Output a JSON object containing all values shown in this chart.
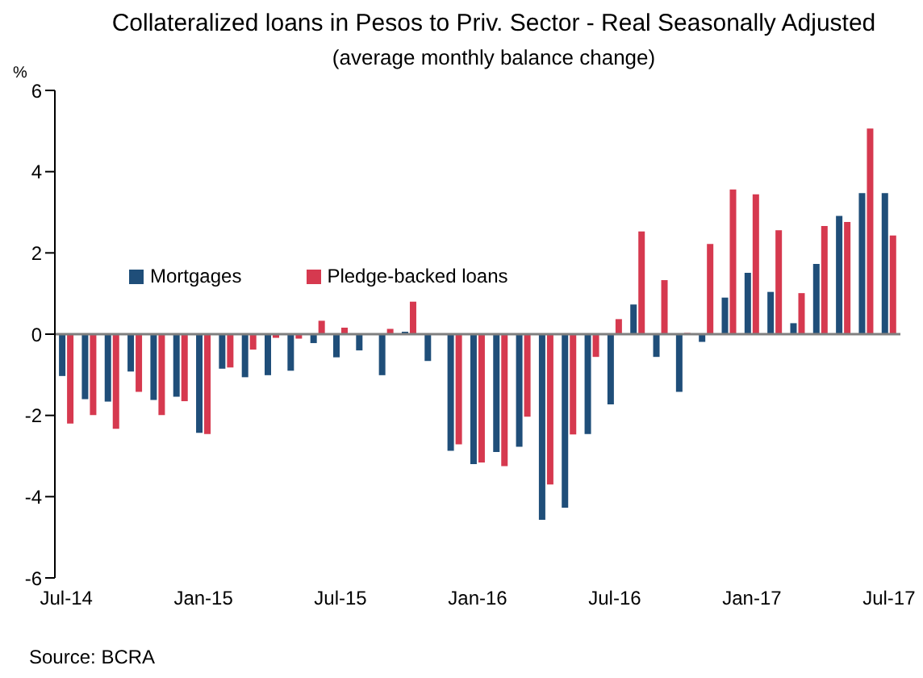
{
  "chart_data": {
    "type": "bar",
    "title": "Collateralized loans in Pesos to Priv. Sector - Real Seasonally Adjusted",
    "subtitle": "(average monthly balance change)",
    "ylabel": "%",
    "categories": [
      "Jul-14",
      null,
      null,
      null,
      null,
      null,
      "Jan-15",
      null,
      null,
      null,
      null,
      null,
      "Jul-15",
      null,
      null,
      null,
      null,
      null,
      "Jan-16",
      null,
      null,
      null,
      null,
      null,
      "Jul-16",
      null,
      null,
      null,
      null,
      null,
      "Jan-17",
      null,
      null,
      null,
      null,
      null,
      "Jul-17"
    ],
    "series": [
      {
        "name": "Mortgages",
        "color": "#1f4e79",
        "values": [
          -1.03,
          -1.6,
          -1.66,
          -0.92,
          -1.62,
          -1.54,
          -2.43,
          -0.85,
          -1.06,
          -1.01,
          -0.9,
          -0.22,
          -0.57,
          -0.4,
          -1.01,
          0.06,
          -0.66,
          -2.87,
          -3.2,
          -2.9,
          -2.77,
          -4.57,
          -4.27,
          -2.46,
          -1.73,
          0.73,
          -0.56,
          -1.42,
          -0.19,
          0.9,
          1.51,
          1.04,
          0.27,
          1.73,
          2.91,
          3.47,
          3.47
        ]
      },
      {
        "name": "Pledge-backed loans",
        "color": "#d6394f",
        "values": [
          -2.2,
          -1.99,
          -2.33,
          -1.42,
          -1.99,
          -1.65,
          -2.46,
          -0.82,
          -0.38,
          -0.09,
          -0.11,
          0.33,
          0.16,
          0,
          0.13,
          0.8,
          0,
          -2.71,
          -3.16,
          -3.25,
          -2.03,
          -3.7,
          -2.47,
          -0.56,
          0.37,
          2.53,
          1.33,
          0.03,
          2.22,
          3.56,
          3.44,
          2.56,
          1.01,
          2.66,
          2.76,
          5.06,
          2.43
        ]
      }
    ],
    "ylim": [
      -6,
      6
    ],
    "yticks": [
      -6,
      -4,
      -2,
      0,
      2,
      4,
      6
    ],
    "grid": false,
    "legend": "top left",
    "ref_lines": [
      {
        "axis": "y",
        "value": 0,
        "color": "#808080"
      }
    ],
    "annotations": [
      "Source: BCRA"
    ]
  }
}
